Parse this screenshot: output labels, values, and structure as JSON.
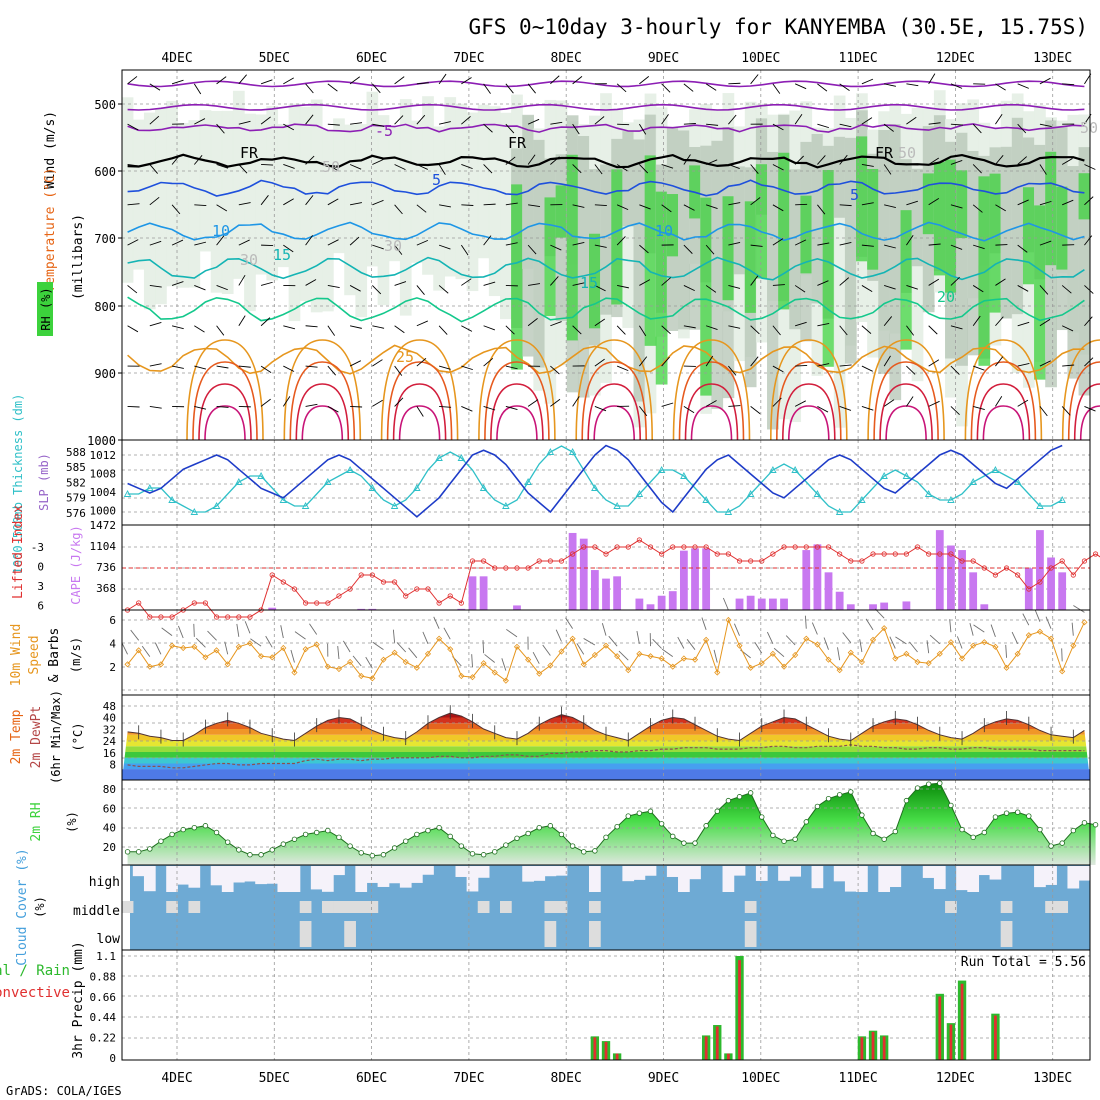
{
  "title": "GFS 0~10day 3-hourly for KANYEMBA (30.5E, 15.75S)",
  "footer": "GrADS: COLA/IGES",
  "dates": [
    "4DEC",
    "5DEC",
    "6DEC",
    "7DEC",
    "8DEC",
    "9DEC",
    "10DEC",
    "11DEC",
    "12DEC",
    "13DEC"
  ],
  "colors": {
    "wind_barb": "#000000",
    "grid": "#999999",
    "rh_green": "#3cd23c",
    "cape": "#c878f0",
    "li": "#e03030",
    "slp": "#1e3cc8",
    "thick": "#30c0c8",
    "precip_total": "#2db92d",
    "precip_conv": "#e03030",
    "cloud_bg": "#6eaad4",
    "cloud_fill": "#f5f2fa"
  },
  "chart_data": [
    {
      "type": "heatmap",
      "name": "upper-air",
      "ylabel_wind": "Wind (m/s)",
      "ylabel_temp": "Temperature (°C)",
      "ylabel_rh": "RH (%)",
      "ylabel_units": "(millibars)",
      "yticks": [
        "500",
        "600",
        "700",
        "800",
        "900",
        "1000"
      ],
      "ylim": [
        1000,
        450
      ],
      "contour_labels": [
        "-5",
        "FR",
        "FR",
        "FR",
        "5",
        "5",
        "10",
        "10",
        "15",
        "15",
        "20",
        "25",
        "50",
        "50",
        "30",
        "50",
        "30"
      ],
      "isotherm_levels": [
        {
          "label": "-5",
          "mean_mb": 535
        },
        {
          "label": "FR",
          "mean_mb": 585
        },
        {
          "label": "5",
          "mean_mb": 625
        },
        {
          "label": "10",
          "mean_mb": 690
        },
        {
          "label": "15",
          "mean_mb": 745
        },
        {
          "label": "20",
          "mean_mb": 805
        },
        {
          "label": "25",
          "mean_mb": 880
        }
      ]
    },
    {
      "type": "line",
      "name": "slp-thickness",
      "ylabel_left": "1000-500mb Thickness (dm)",
      "ylabel_right": "SLP (mb)",
      "yticks_left": [
        "588",
        "585",
        "582",
        "579",
        "576"
      ],
      "yticks_right": [
        "1012",
        "1008",
        "1004",
        "1000"
      ],
      "series": [
        {
          "name": "SLP",
          "values": [
            1006,
            1005,
            1004,
            1005,
            1007,
            1009,
            1010,
            1011,
            1012,
            1011,
            1009,
            1007,
            1005,
            1004,
            1003,
            1005,
            1007,
            1009,
            1011,
            1012,
            1011,
            1009,
            1007,
            1005,
            1003,
            1001,
            999,
            1001,
            1003,
            1006,
            1009,
            1012,
            1013,
            1012,
            1010,
            1007,
            1004,
            1002,
            1000,
            1003,
            1006,
            1009,
            1012,
            1014,
            1013,
            1011,
            1008,
            1005,
            1002,
            1000,
            1003,
            1006,
            1009,
            1011,
            1012,
            1010,
            1008,
            1006,
            1004,
            1003,
            1005,
            1007,
            1009,
            1011,
            1012,
            1011,
            1009,
            1007,
            1005,
            1004,
            1006,
            1008,
            1010,
            1012,
            1013,
            1012,
            1010,
            1008,
            1006,
            1005,
            1007,
            1009,
            1011,
            1013,
            1014
          ]
        },
        {
          "name": "Thickness",
          "values": [
            581,
            581,
            582,
            582,
            580,
            579,
            578,
            578,
            579,
            581,
            583,
            584,
            584,
            582,
            580,
            579,
            579,
            581,
            583,
            584,
            585,
            584,
            582,
            580,
            579,
            580,
            582,
            585,
            587,
            588,
            587,
            585,
            582,
            580,
            579,
            580,
            583,
            586,
            588,
            589,
            588,
            585,
            582,
            580,
            579,
            579,
            581,
            583,
            585,
            585,
            584,
            582,
            580,
            578,
            578,
            579,
            581,
            583,
            585,
            586,
            585,
            583,
            581,
            579,
            578,
            578,
            580,
            582,
            584,
            585,
            584,
            583,
            581,
            580,
            580,
            581,
            583,
            584,
            585,
            584,
            583,
            581,
            579,
            579,
            580
          ]
        }
      ]
    },
    {
      "type": "bar",
      "name": "cape-li",
      "ylabel_left": "Lifted Index",
      "ylabel_right": "CAPE (J/kg)",
      "yticks_left": [
        "-3",
        "0",
        "3",
        "6"
      ],
      "yticks_right": [
        "1472",
        "1104",
        "736",
        "368"
      ],
      "series": [
        {
          "name": "CAPE",
          "values": [
            0,
            0,
            0,
            0,
            0,
            0,
            0,
            0,
            0,
            0,
            0,
            0,
            0,
            40,
            0,
            0,
            0,
            0,
            0,
            0,
            0,
            20,
            20,
            0,
            0,
            0,
            0,
            0,
            0,
            0,
            20,
            590,
            590,
            0,
            0,
            80,
            0,
            0,
            0,
            0,
            1350,
            1250,
            700,
            550,
            590,
            0,
            200,
            100,
            250,
            330,
            1040,
            1080,
            1080,
            0,
            0,
            200,
            250,
            200,
            200,
            200,
            0,
            1050,
            1150,
            660,
            320,
            100,
            0,
            100,
            130,
            0,
            150,
            0,
            0,
            1400,
            1130,
            1050,
            660,
            100,
            0,
            0,
            0,
            730,
            1400,
            920,
            660,
            0,
            0,
            0,
            160
          ]
        },
        {
          "name": "Lifted Index",
          "values": [
            6,
            5,
            7,
            7,
            7,
            6,
            5,
            5,
            7,
            7,
            7,
            7,
            6,
            1,
            2,
            3,
            5,
            5,
            5,
            4,
            3,
            1,
            1,
            2,
            2,
            4,
            3,
            3,
            5,
            4,
            5,
            -1,
            -1,
            0,
            0,
            0,
            0,
            -1,
            -1,
            -1,
            -2,
            -3,
            -3,
            -2,
            -3,
            -3,
            -4,
            -3,
            -2,
            -3,
            -3,
            -3,
            -3,
            -2,
            -2,
            -1,
            -1,
            -1,
            -2,
            -3,
            -3,
            -3,
            -3,
            -3,
            -2,
            -1,
            -1,
            -2,
            -2,
            -2,
            -2,
            -3,
            -2,
            -2,
            -2,
            -1,
            -1,
            0,
            1,
            0,
            1,
            3,
            2,
            0,
            -1,
            1,
            -1,
            -2,
            -1
          ]
        }
      ]
    },
    {
      "type": "line",
      "name": "wind10m",
      "ylabel": "10m Wind Speed & Barbs (m/s)",
      "yticks": [
        "6",
        "4",
        "2"
      ],
      "series": [
        {
          "name": "Wind Speed",
          "values": [
            2.2,
            3.4,
            2.0,
            2.2,
            3.8,
            3.6,
            3.7,
            2.8,
            3.4,
            2.2,
            3.7,
            4.0,
            2.9,
            2.8,
            3.6,
            1.5,
            3.5,
            3.9,
            2.0,
            1.8,
            2.4,
            1.2,
            1.0,
            2.6,
            3.2,
            2.4,
            1.9,
            3.1,
            4.4,
            3.5,
            1.2,
            1.1,
            2.3,
            1.5,
            0.8,
            3.7,
            2.6,
            1.4,
            2.1,
            3.3,
            4.4,
            2.2,
            3.0,
            3.8,
            2.9,
            1.7,
            3.1,
            2.9,
            2.7,
            2.0,
            2.7,
            2.6,
            4.3,
            1.5,
            6.0,
            3.8,
            1.9,
            2.3,
            3.1,
            2.0,
            3.0,
            4.4,
            3.9,
            2.6,
            1.7,
            3.2,
            2.4,
            4.3,
            5.3,
            2.7,
            3.1,
            2.4,
            2.3,
            3.1,
            4.1,
            2.7,
            3.8,
            4.1,
            3.7,
            1.9,
            3.1,
            4.7,
            5.0,
            4.4,
            1.6,
            3.8,
            5.8
          ]
        }
      ]
    },
    {
      "type": "area",
      "name": "temp2m",
      "ylabel": "2m Temp 2m DewPt (6hr Min/Max) (°C)",
      "yticks": [
        "48",
        "40",
        "32",
        "24",
        "16",
        "8"
      ],
      "series": [
        {
          "name": "2m Temp",
          "values": [
            30,
            29,
            27,
            26,
            24,
            24,
            28,
            33,
            36,
            38,
            36,
            33,
            29,
            27,
            25,
            24,
            29,
            34,
            38,
            40,
            39,
            35,
            31,
            28,
            26,
            25,
            30,
            36,
            40,
            43,
            41,
            37,
            32,
            29,
            26,
            25,
            29,
            35,
            39,
            42,
            40,
            36,
            31,
            28,
            26,
            24,
            29,
            34,
            38,
            40,
            39,
            35,
            31,
            27,
            25,
            24,
            29,
            34,
            37,
            40,
            39,
            35,
            31,
            27,
            25,
            24,
            29,
            34,
            37,
            39,
            38,
            35,
            31,
            28,
            26,
            25,
            29,
            34,
            37,
            39,
            38,
            35,
            31,
            28,
            27,
            26,
            31
          ]
        },
        {
          "name": "2m DewPt",
          "values": [
            7,
            6,
            6,
            6,
            5,
            5,
            6,
            7,
            8,
            8,
            7,
            7,
            8,
            8,
            8,
            8,
            10,
            11,
            10,
            11,
            11,
            10,
            11,
            11,
            12,
            12,
            12,
            12,
            13,
            13,
            12,
            12,
            13,
            13,
            14,
            14,
            13,
            13,
            15,
            15,
            16,
            16,
            17,
            17,
            16,
            16,
            17,
            17,
            18,
            18,
            19,
            19,
            19,
            18,
            18,
            18,
            19,
            19,
            20,
            20,
            19,
            19,
            20,
            20,
            20,
            21,
            20,
            20,
            19,
            19,
            18,
            18,
            19,
            19,
            18,
            18,
            19,
            19,
            18,
            18,
            18,
            18,
            17,
            17,
            17,
            17,
            17
          ]
        }
      ]
    },
    {
      "type": "area",
      "name": "rh2m",
      "ylabel": "2m RH (%)",
      "yticks": [
        "80",
        "60",
        "40",
        "20"
      ],
      "series": [
        {
          "name": "2m RH",
          "values": [
            15,
            15,
            18,
            26,
            33,
            38,
            40,
            42,
            35,
            25,
            17,
            12,
            12,
            17,
            23,
            28,
            33,
            35,
            37,
            30,
            21,
            14,
            11,
            12,
            19,
            26,
            33,
            37,
            40,
            31,
            21,
            13,
            12,
            15,
            22,
            29,
            34,
            40,
            42,
            33,
            21,
            15,
            16,
            30,
            41,
            52,
            55,
            57,
            44,
            31,
            24,
            24,
            42,
            57,
            68,
            72,
            76,
            51,
            32,
            26,
            28,
            46,
            62,
            70,
            74,
            77,
            53,
            34,
            28,
            36,
            68,
            81,
            85,
            86,
            63,
            38,
            30,
            35,
            51,
            55,
            56,
            52,
            38,
            21,
            24,
            37,
            45,
            43
          ]
        }
      ]
    },
    {
      "type": "bar",
      "name": "cloud",
      "ylabel": "Cloud Cover (%)",
      "ylabels": [
        "high",
        "middle",
        "low"
      ]
    },
    {
      "type": "bar",
      "name": "precip",
      "ylabel_left": "Total / Rain",
      "ylabel_left2": "Convective",
      "ylabel": "3hr Precip (mm)",
      "yticks": [
        "1.1",
        "0.88",
        "0.66",
        "0.44",
        "0.22",
        "0"
      ],
      "annotation": "Run Total = 5.56",
      "series": [
        {
          "name": "3hr Precip",
          "values": [
            0,
            0,
            0,
            0,
            0,
            0,
            0,
            0,
            0,
            0,
            0,
            0,
            0,
            0,
            0,
            0,
            0,
            0,
            0,
            0,
            0,
            0,
            0,
            0,
            0,
            0,
            0,
            0,
            0,
            0,
            0,
            0,
            0,
            0,
            0,
            0,
            0,
            0,
            0,
            0,
            0,
            0,
            0.25,
            0.2,
            0.07,
            0,
            0,
            0,
            0,
            0,
            0,
            0,
            0.26,
            0.37,
            0.07,
            1.1,
            0,
            0,
            0,
            0,
            0,
            0,
            0,
            0,
            0,
            0,
            0.25,
            0.31,
            0.26,
            0,
            0,
            0,
            0,
            0.7,
            0.39,
            0.84,
            0,
            0,
            0.49,
            0,
            0,
            0,
            0,
            0,
            0,
            0,
            0,
            0
          ]
        }
      ]
    }
  ]
}
